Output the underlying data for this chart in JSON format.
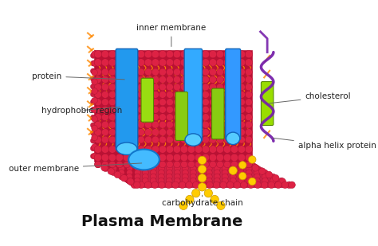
{
  "title": "Plasma Membrane",
  "title_fontsize": 14,
  "title_fontweight": "bold",
  "background_color": "#ffffff",
  "labels": {
    "outer_membrane": "outer membrane",
    "carbohydrate_chain": "carbohydrate chain",
    "alpha_helix_protein": "alpha helix protein",
    "hydrophobic_region": "hydrophobic region",
    "cholesterol": "cholesterol",
    "protein": "protein",
    "inner_membrane": "inner membrane"
  },
  "membrane_color": "#cc2244",
  "membrane_color2": "#bb1133",
  "bead_color": "#dd2244",
  "bead_edge": "#aa1133",
  "tail_color": "#ff8800",
  "protein_color": "#2299ee",
  "protein_edge": "#1166bb",
  "cholesterol_color": "#88cc11",
  "cholesterol_edge": "#558800",
  "carbohydrate_color": "#ffcc00",
  "carbohydrate_edge": "#cc9900",
  "alpha_helix_color": "#7722aa",
  "line_color": "#666666",
  "label_fontsize": 7.5,
  "label_color": "#222222"
}
